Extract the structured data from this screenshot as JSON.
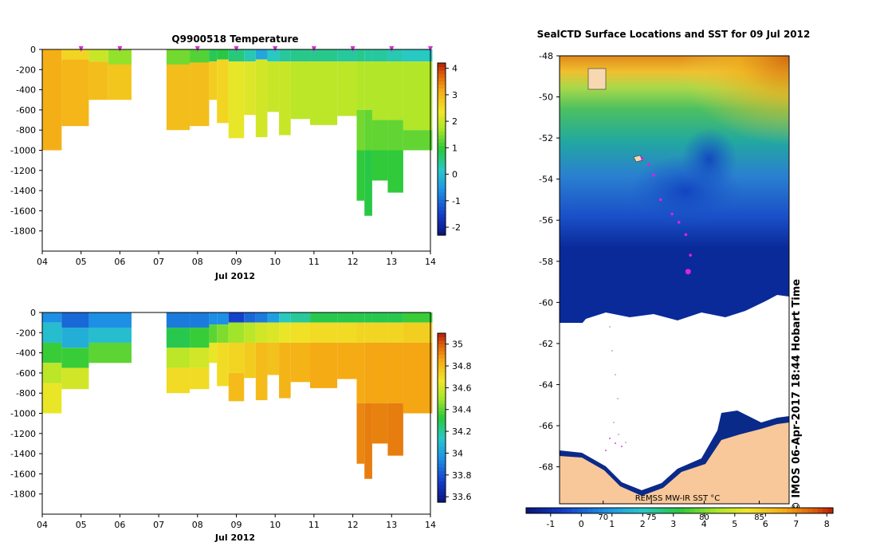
{
  "chart_data": [
    {
      "type": "heatmap",
      "id": "temperature",
      "title": "Q9900518  Temperature",
      "xlabel": "Jul 2012",
      "ylabel": "",
      "x_ticks": [
        "04",
        "05",
        "06",
        "07",
        "08",
        "09",
        "10",
        "11",
        "12",
        "13",
        "14"
      ],
      "xlim": [
        4,
        14
      ],
      "y_ticks": [
        0,
        -200,
        -400,
        -600,
        -800,
        -1000,
        -1200,
        -1400,
        -1600,
        -1800
      ],
      "ylim": [
        -2000,
        0
      ],
      "colorbar": {
        "ticks": [
          4,
          3,
          2,
          1,
          0,
          -1,
          -2
        ],
        "range": [
          -2.3,
          4.2
        ]
      },
      "profile_markers": [
        5,
        6,
        8,
        9,
        10,
        11,
        12,
        13,
        14
      ],
      "profiles": [
        {
          "t0": 4.0,
          "t1": 4.5,
          "depth": 1000,
          "layers": [
            {
              "to": -1000,
              "v": 3.1
            }
          ]
        },
        {
          "t0": 4.5,
          "t1": 5.2,
          "depth": 760,
          "layers": [
            {
              "to": -100,
              "v": 2.6
            },
            {
              "to": -760,
              "v": 3.0
            }
          ]
        },
        {
          "t0": 5.2,
          "t1": 5.7,
          "depth": 500,
          "layers": [
            {
              "to": -120,
              "v": 2.0
            },
            {
              "to": -500,
              "v": 2.9
            }
          ]
        },
        {
          "t0": 5.7,
          "t1": 6.3,
          "depth": 500,
          "layers": [
            {
              "to": -150,
              "v": 1.6
            },
            {
              "to": -500,
              "v": 2.8
            }
          ]
        },
        {
          "t0": 7.2,
          "t1": 7.8,
          "depth": 800,
          "layers": [
            {
              "to": -150,
              "v": 1.4
            },
            {
              "to": -800,
              "v": 2.9
            }
          ]
        },
        {
          "t0": 7.8,
          "t1": 8.3,
          "depth": 760,
          "layers": [
            {
              "to": -130,
              "v": 1.2
            },
            {
              "to": -760,
              "v": 2.9
            }
          ]
        },
        {
          "t0": 8.3,
          "t1": 8.5,
          "depth": 500,
          "layers": [
            {
              "to": -120,
              "v": 0.8
            },
            {
              "to": -500,
              "v": 2.7
            }
          ]
        },
        {
          "t0": 8.5,
          "t1": 8.8,
          "depth": 730,
          "layers": [
            {
              "to": -100,
              "v": 0.9
            },
            {
              "to": -730,
              "v": 2.6
            }
          ]
        },
        {
          "t0": 8.8,
          "t1": 9.2,
          "depth": 880,
          "layers": [
            {
              "to": -120,
              "v": 0.6
            },
            {
              "to": -880,
              "v": 2.3
            }
          ]
        },
        {
          "t0": 9.2,
          "t1": 9.5,
          "depth": 650,
          "layers": [
            {
              "to": -120,
              "v": 0.3
            },
            {
              "to": -650,
              "v": 2.2
            }
          ]
        },
        {
          "t0": 9.5,
          "t1": 9.8,
          "depth": 870,
          "layers": [
            {
              "to": -100,
              "v": -0.3
            },
            {
              "to": -870,
              "v": 2.1
            }
          ]
        },
        {
          "t0": 9.8,
          "t1": 10.1,
          "depth": 620,
          "layers": [
            {
              "to": -120,
              "v": 0.2
            },
            {
              "to": -620,
              "v": 2.0
            }
          ]
        },
        {
          "t0": 10.1,
          "t1": 10.4,
          "depth": 850,
          "layers": [
            {
              "to": -120,
              "v": 0.4
            },
            {
              "to": -850,
              "v": 2.0
            }
          ]
        },
        {
          "t0": 10.4,
          "t1": 10.9,
          "depth": 690,
          "layers": [
            {
              "to": -120,
              "v": 0.5
            },
            {
              "to": -690,
              "v": 1.9
            }
          ]
        },
        {
          "t0": 10.9,
          "t1": 11.6,
          "depth": 750,
          "layers": [
            {
              "to": -120,
              "v": 0.5
            },
            {
              "to": -750,
              "v": 1.9
            }
          ]
        },
        {
          "t0": 11.6,
          "t1": 12.1,
          "depth": 660,
          "layers": [
            {
              "to": -120,
              "v": 0.4
            },
            {
              "to": -660,
              "v": 1.9
            }
          ]
        },
        {
          "t0": 12.1,
          "t1": 12.3,
          "depth": 1500,
          "layers": [
            {
              "to": -120,
              "v": 0.5
            },
            {
              "to": -600,
              "v": 1.8
            },
            {
              "to": -1000,
              "v": 1.4
            },
            {
              "to": -1500,
              "v": 1.0
            }
          ]
        },
        {
          "t0": 12.3,
          "t1": 12.5,
          "depth": 1650,
          "layers": [
            {
              "to": -120,
              "v": 0.4
            },
            {
              "to": -600,
              "v": 1.8
            },
            {
              "to": -1000,
              "v": 1.3
            },
            {
              "to": -1650,
              "v": 0.9
            }
          ]
        },
        {
          "t0": 12.5,
          "t1": 12.9,
          "depth": 1300,
          "layers": [
            {
              "to": -120,
              "v": 0.4
            },
            {
              "to": -700,
              "v": 1.8
            },
            {
              "to": -1000,
              "v": 1.3
            },
            {
              "to": -1300,
              "v": 1.0
            }
          ]
        },
        {
          "t0": 12.9,
          "t1": 13.3,
          "depth": 1420,
          "layers": [
            {
              "to": -120,
              "v": 0.3
            },
            {
              "to": -700,
              "v": 1.8
            },
            {
              "to": -1000,
              "v": 1.3
            },
            {
              "to": -1420,
              "v": 1.0
            }
          ]
        },
        {
          "t0": 13.3,
          "t1": 14.05,
          "depth": 1000,
          "layers": [
            {
              "to": -120,
              "v": 0.2
            },
            {
              "to": -800,
              "v": 1.8
            },
            {
              "to": -1000,
              "v": 1.3
            }
          ]
        }
      ]
    },
    {
      "type": "heatmap",
      "id": "salinity",
      "title": "",
      "xlabel": "Jul 2012",
      "ylabel": "",
      "x_ticks": [
        "04",
        "05",
        "06",
        "07",
        "08",
        "09",
        "10",
        "11",
        "12",
        "13",
        "14"
      ],
      "xlim": [
        4,
        14
      ],
      "y_ticks": [
        0,
        -200,
        -400,
        -600,
        -800,
        -1000,
        -1200,
        -1400,
        -1600,
        -1800
      ],
      "ylim": [
        -2000,
        0
      ],
      "colorbar": {
        "ticks": [
          "35",
          "34.8",
          "34.6",
          "34.4",
          "34.2",
          "34",
          "33.8",
          "33.6"
        ],
        "range": [
          33.55,
          35.1
        ]
      },
      "profiles": [
        {
          "t0": 4.0,
          "t1": 4.5,
          "depth": 1000,
          "layers": [
            {
              "to": -100,
              "v": 33.95
            },
            {
              "to": -300,
              "v": 34.1
            },
            {
              "to": -500,
              "v": 34.35
            },
            {
              "to": -700,
              "v": 34.55
            },
            {
              "to": -1000,
              "v": 34.65
            }
          ]
        },
        {
          "t0": 4.5,
          "t1": 5.2,
          "depth": 760,
          "layers": [
            {
              "to": -150,
              "v": 33.85
            },
            {
              "to": -350,
              "v": 34.05
            },
            {
              "to": -550,
              "v": 34.35
            },
            {
              "to": -760,
              "v": 34.6
            }
          ]
        },
        {
          "t0": 5.2,
          "t1": 6.3,
          "depth": 500,
          "layers": [
            {
              "to": -150,
              "v": 33.95
            },
            {
              "to": -300,
              "v": 34.1
            },
            {
              "to": -500,
              "v": 34.4
            }
          ]
        },
        {
          "t0": 7.2,
          "t1": 7.8,
          "depth": 800,
          "layers": [
            {
              "to": -150,
              "v": 33.9
            },
            {
              "to": -350,
              "v": 34.3
            },
            {
              "to": -550,
              "v": 34.55
            },
            {
              "to": -800,
              "v": 34.7
            }
          ]
        },
        {
          "t0": 7.8,
          "t1": 8.3,
          "depth": 760,
          "layers": [
            {
              "to": -150,
              "v": 33.9
            },
            {
              "to": -350,
              "v": 34.35
            },
            {
              "to": -550,
              "v": 34.6
            },
            {
              "to": -760,
              "v": 34.7
            }
          ]
        },
        {
          "t0": 8.3,
          "t1": 8.5,
          "depth": 500,
          "layers": [
            {
              "to": -120,
              "v": 33.95
            },
            {
              "to": -300,
              "v": 34.4
            },
            {
              "to": -500,
              "v": 34.65
            }
          ]
        },
        {
          "t0": 8.5,
          "t1": 8.8,
          "depth": 730,
          "layers": [
            {
              "to": -120,
              "v": 33.95
            },
            {
              "to": -300,
              "v": 34.45
            },
            {
              "to": -730,
              "v": 34.7
            }
          ]
        },
        {
          "t0": 8.8,
          "t1": 9.2,
          "depth": 880,
          "layers": [
            {
              "to": -100,
              "v": 33.75
            },
            {
              "to": -300,
              "v": 34.5
            },
            {
              "to": -600,
              "v": 34.72
            },
            {
              "to": -880,
              "v": 34.8
            }
          ]
        },
        {
          "t0": 9.2,
          "t1": 9.5,
          "depth": 650,
          "layers": [
            {
              "to": -100,
              "v": 33.85
            },
            {
              "to": -300,
              "v": 34.55
            },
            {
              "to": -650,
              "v": 34.75
            }
          ]
        },
        {
          "t0": 9.5,
          "t1": 9.8,
          "depth": 870,
          "layers": [
            {
              "to": -100,
              "v": 33.9
            },
            {
              "to": -300,
              "v": 34.6
            },
            {
              "to": -870,
              "v": 34.8
            }
          ]
        },
        {
          "t0": 9.8,
          "t1": 10.1,
          "depth": 620,
          "layers": [
            {
              "to": -100,
              "v": 34.0
            },
            {
              "to": -300,
              "v": 34.62
            },
            {
              "to": -620,
              "v": 34.78
            }
          ]
        },
        {
          "t0": 10.1,
          "t1": 10.4,
          "depth": 850,
          "layers": [
            {
              "to": -100,
              "v": 34.15
            },
            {
              "to": -300,
              "v": 34.65
            },
            {
              "to": -850,
              "v": 34.82
            }
          ]
        },
        {
          "t0": 10.4,
          "t1": 10.9,
          "depth": 690,
          "layers": [
            {
              "to": -100,
              "v": 34.2
            },
            {
              "to": -300,
              "v": 34.68
            },
            {
              "to": -690,
              "v": 34.82
            }
          ]
        },
        {
          "t0": 10.9,
          "t1": 11.6,
          "depth": 750,
          "layers": [
            {
              "to": -100,
              "v": 34.3
            },
            {
              "to": -300,
              "v": 34.7
            },
            {
              "to": -750,
              "v": 34.85
            }
          ]
        },
        {
          "t0": 11.6,
          "t1": 12.1,
          "depth": 660,
          "layers": [
            {
              "to": -100,
              "v": 34.3
            },
            {
              "to": -300,
              "v": 34.7
            },
            {
              "to": -660,
              "v": 34.85
            }
          ]
        },
        {
          "t0": 12.1,
          "t1": 12.3,
          "depth": 1500,
          "layers": [
            {
              "to": -100,
              "v": 34.3
            },
            {
              "to": -300,
              "v": 34.72
            },
            {
              "to": -900,
              "v": 34.85
            },
            {
              "to": -1500,
              "v": 34.92
            }
          ]
        },
        {
          "t0": 12.3,
          "t1": 12.5,
          "depth": 1650,
          "layers": [
            {
              "to": -100,
              "v": 34.3
            },
            {
              "to": -300,
              "v": 34.72
            },
            {
              "to": -900,
              "v": 34.86
            },
            {
              "to": -1650,
              "v": 34.94
            }
          ]
        },
        {
          "t0": 12.5,
          "t1": 12.9,
          "depth": 1300,
          "layers": [
            {
              "to": -100,
              "v": 34.3
            },
            {
              "to": -300,
              "v": 34.72
            },
            {
              "to": -900,
              "v": 34.86
            },
            {
              "to": -1300,
              "v": 34.93
            }
          ]
        },
        {
          "t0": 12.9,
          "t1": 13.3,
          "depth": 1420,
          "layers": [
            {
              "to": -100,
              "v": 34.3
            },
            {
              "to": -300,
              "v": 34.72
            },
            {
              "to": -900,
              "v": 34.86
            },
            {
              "to": -1420,
              "v": 34.94
            }
          ]
        },
        {
          "t0": 13.3,
          "t1": 14.05,
          "depth": 1000,
          "layers": [
            {
              "to": -100,
              "v": 34.35
            },
            {
              "to": -300,
              "v": 34.74
            },
            {
              "to": -1000,
              "v": 34.86
            }
          ]
        }
      ]
    },
    {
      "type": "heatmap",
      "id": "sst_map",
      "title": "SealCTD Surface Locations and SST for 09 Jul 2012",
      "y_ticks": [
        -48,
        -50,
        -52,
        -54,
        -56,
        -58,
        -60,
        -62,
        -64,
        -66,
        -68
      ],
      "ylim": [
        -69.8,
        -48
      ],
      "x_ticks_inner": [
        "70",
        "75",
        "80",
        "85"
      ],
      "colorbar": {
        "ticks": [
          "-1",
          "0",
          "1",
          "2",
          "3",
          "4",
          "5",
          "6",
          "7",
          "8"
        ],
        "range": [
          -1.8,
          8.2
        ]
      },
      "product_label": "REMSS MW-IR SST °C",
      "credit": "© IMOS 06-Apr-2017 18:44 Hobart Time",
      "track_lat": [
        -53.0,
        -53.3,
        -53.8,
        -55.0,
        -55.7,
        -56.1,
        -56.7,
        -57.7,
        -58.5
      ]
    }
  ]
}
